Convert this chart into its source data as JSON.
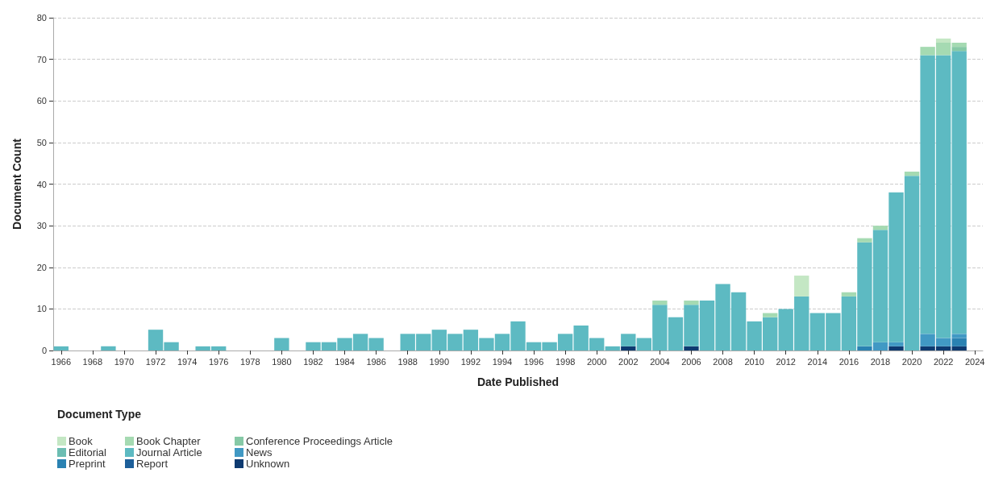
{
  "chart_data": {
    "type": "bar",
    "stacked": true,
    "xlabel": "Date Published",
    "ylabel": "Document Count",
    "legend_title": "Document Type",
    "legend": "bottom left",
    "grid": "y",
    "categories": [
      "1966",
      null,
      "1968",
      null,
      "1970",
      null,
      "1972",
      null,
      "1974",
      null,
      "1976",
      null,
      "1978",
      null,
      "1980",
      null,
      "1982",
      null,
      "1984",
      null,
      "1986",
      null,
      "1988",
      null,
      "1990",
      null,
      "1992",
      null,
      "1994",
      null,
      "1996",
      null,
      "1998",
      null,
      "2000",
      null,
      "2002",
      null,
      "2004",
      null,
      "2006",
      null,
      "2008",
      null,
      "2010",
      null,
      "2012",
      null,
      "2014",
      null,
      "2016",
      null,
      "2018",
      null,
      "2020",
      null,
      "2022",
      null,
      "2024"
    ],
    "ylim": [
      0,
      80
    ],
    "yticks": [
      0,
      10,
      20,
      30,
      40,
      50,
      60,
      70,
      80
    ],
    "series": [
      {
        "name": "Unknown",
        "color": "#0e3a70",
        "values": [
          0,
          0,
          0,
          0,
          0,
          0,
          0,
          0,
          0,
          0,
          0,
          0,
          0,
          0,
          0,
          0,
          0,
          0,
          0,
          0,
          0,
          0,
          0,
          0,
          0,
          0,
          0,
          0,
          0,
          0,
          0,
          0,
          0,
          0,
          0,
          0,
          1,
          0,
          0,
          0,
          1,
          0,
          0,
          0,
          0,
          0,
          0,
          0,
          0,
          0,
          0,
          0,
          0,
          1,
          0,
          1,
          1,
          1,
          null
        ]
      },
      {
        "name": "Report",
        "color": "#1d5f9a",
        "values": [
          0,
          0,
          0,
          0,
          0,
          0,
          0,
          0,
          0,
          0,
          0,
          0,
          0,
          0,
          0,
          0,
          0,
          0,
          0,
          0,
          0,
          0,
          0,
          0,
          0,
          0,
          0,
          0,
          0,
          0,
          0,
          0,
          0,
          0,
          0,
          0,
          0,
          0,
          0,
          0,
          0,
          0,
          0,
          0,
          0,
          0,
          0,
          0,
          0,
          0,
          0,
          0,
          0,
          0,
          0,
          0,
          0,
          0,
          null
        ]
      },
      {
        "name": "Preprint",
        "color": "#2a82b2",
        "values": [
          0,
          0,
          0,
          0,
          0,
          0,
          0,
          0,
          0,
          0,
          0,
          0,
          0,
          0,
          0,
          0,
          0,
          0,
          0,
          0,
          0,
          0,
          0,
          0,
          0,
          0,
          0,
          0,
          0,
          0,
          0,
          0,
          0,
          0,
          0,
          0,
          0,
          0,
          0,
          0,
          0,
          0,
          0,
          0,
          0,
          0,
          0,
          0,
          0,
          0,
          0,
          1,
          0,
          0,
          0,
          0,
          0,
          2,
          null
        ]
      },
      {
        "name": "News",
        "color": "#4199c4",
        "values": [
          0,
          0,
          0,
          0,
          0,
          0,
          0,
          0,
          0,
          0,
          0,
          0,
          0,
          0,
          0,
          0,
          0,
          0,
          0,
          0,
          0,
          0,
          0,
          0,
          0,
          0,
          0,
          0,
          0,
          0,
          0,
          0,
          0,
          0,
          0,
          0,
          0,
          0,
          0,
          0,
          0,
          0,
          0,
          0,
          0,
          0,
          0,
          0,
          0,
          0,
          0,
          0,
          2,
          1,
          0,
          3,
          2,
          1,
          null
        ]
      },
      {
        "name": "Journal Article",
        "color": "#5dbac2",
        "values": [
          1,
          0,
          0,
          1,
          0,
          0,
          5,
          2,
          0,
          1,
          1,
          0,
          0,
          0,
          3,
          0,
          2,
          2,
          3,
          4,
          3,
          0,
          4,
          4,
          5,
          4,
          5,
          3,
          4,
          7,
          2,
          2,
          4,
          6,
          3,
          1,
          3,
          3,
          11,
          8,
          10,
          12,
          16,
          14,
          7,
          8,
          10,
          13,
          9,
          9,
          13,
          25,
          27,
          36,
          42,
          67,
          68,
          68,
          null
        ]
      },
      {
        "name": "Editorial",
        "color": "#6cbdb2",
        "values": [
          0,
          0,
          0,
          0,
          0,
          0,
          0,
          0,
          0,
          0,
          0,
          0,
          0,
          0,
          0,
          0,
          0,
          0,
          0,
          0,
          0,
          0,
          0,
          0,
          0,
          0,
          0,
          0,
          0,
          0,
          0,
          0,
          0,
          0,
          0,
          0,
          0,
          0,
          0,
          0,
          0,
          0,
          0,
          0,
          0,
          0,
          0,
          0,
          0,
          0,
          0,
          0,
          0,
          0,
          0,
          0,
          0,
          0,
          null
        ]
      },
      {
        "name": "Conference Proceedings Article",
        "color": "#86c9a6",
        "values": [
          0,
          0,
          0,
          0,
          0,
          0,
          0,
          0,
          0,
          0,
          0,
          0,
          0,
          0,
          0,
          0,
          0,
          0,
          0,
          0,
          0,
          0,
          0,
          0,
          0,
          0,
          0,
          0,
          0,
          0,
          0,
          0,
          0,
          0,
          0,
          0,
          0,
          0,
          0,
          0,
          0,
          0,
          0,
          0,
          0,
          0,
          0,
          0,
          0,
          0,
          0,
          0,
          0,
          0,
          0,
          0,
          0,
          1,
          null
        ]
      },
      {
        "name": "Book Chapter",
        "color": "#a5dab2",
        "values": [
          0,
          0,
          0,
          0,
          0,
          0,
          0,
          0,
          0,
          0,
          0,
          0,
          0,
          0,
          0,
          0,
          0,
          0,
          0,
          0,
          0,
          0,
          0,
          0,
          0,
          0,
          0,
          0,
          0,
          0,
          0,
          0,
          0,
          0,
          0,
          0,
          0,
          0,
          1,
          0,
          1,
          0,
          0,
          0,
          0,
          1,
          0,
          0,
          0,
          0,
          1,
          1,
          1,
          0,
          1,
          2,
          3,
          1,
          null
        ]
      },
      {
        "name": "Book",
        "color": "#c4e7c4",
        "values": [
          0,
          0,
          0,
          0,
          0,
          0,
          0,
          0,
          0,
          0,
          0,
          0,
          0,
          0,
          0,
          0,
          0,
          0,
          0,
          0,
          0,
          0,
          0,
          0,
          0,
          0,
          0,
          0,
          0,
          0,
          0,
          0,
          0,
          0,
          0,
          0,
          0,
          0,
          0,
          0,
          0,
          0,
          0,
          0,
          0,
          0,
          0,
          5,
          0,
          0,
          0,
          0,
          0,
          0,
          0,
          0,
          1,
          0,
          null
        ]
      }
    ]
  }
}
